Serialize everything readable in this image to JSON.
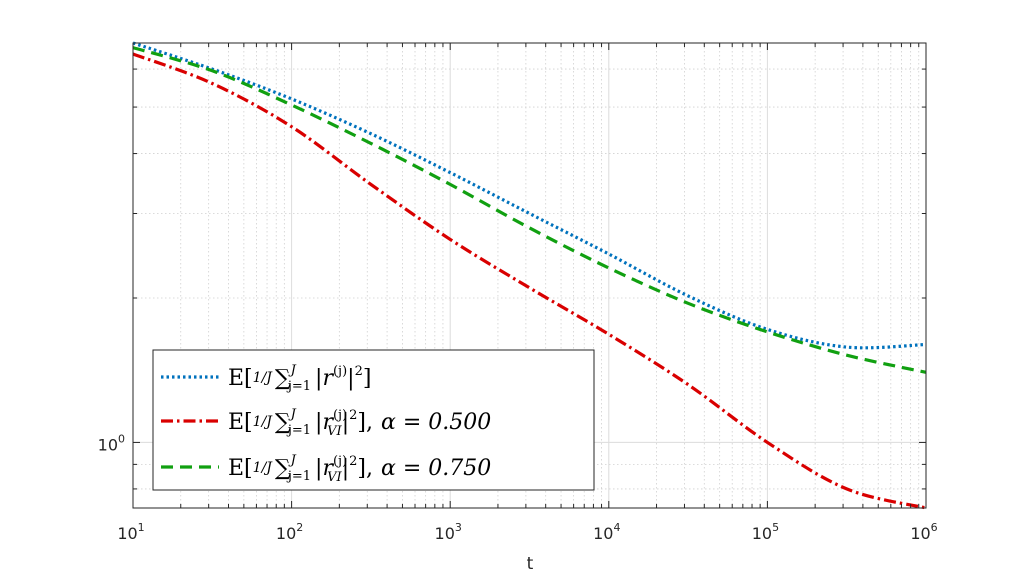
{
  "chart_data": {
    "type": "line",
    "xscale": "log",
    "yscale": "log",
    "xlabel": "t",
    "ylabel": "",
    "title": "",
    "xlim": [
      10,
      1000000
    ],
    "ylim": [
      0.73,
      6.8
    ],
    "grid": true,
    "minor_grid": true,
    "legend_position": "bottom-left",
    "x_ticks": [
      {
        "base": "10",
        "exp": "1"
      },
      {
        "base": "10",
        "exp": "2"
      },
      {
        "base": "10",
        "exp": "3"
      },
      {
        "base": "10",
        "exp": "4"
      },
      {
        "base": "10",
        "exp": "5"
      },
      {
        "base": "10",
        "exp": "6"
      }
    ],
    "y_ticks": [
      {
        "base": "10",
        "exp": "0"
      }
    ],
    "x": [
      10,
      31.6,
      100,
      316,
      1000,
      3162,
      10000,
      31623,
      100000,
      316228,
      1000000
    ],
    "series": [
      {
        "legend": {
          "lhs": "E[",
          "frac": "1/J",
          "sum": "∑",
          "sum_sup": "J",
          "sum_sub": "j=1",
          "body": "|r",
          "sup": "(j)",
          "sub": "",
          "tail": "|",
          "tail_sup": "2",
          "close": "]",
          "param": ""
        },
        "color": "#0072bd",
        "dash": "dotted",
        "values": [
          6.8,
          6.0,
          5.2,
          4.4,
          3.65,
          3.0,
          2.47,
          2.02,
          1.72,
          1.58,
          1.6
        ]
      },
      {
        "legend": {
          "lhs": "E[",
          "frac": "1/J",
          "sum": "∑",
          "sum_sup": "J",
          "sum_sub": "j=1",
          "body": "|r",
          "sup": "(j)",
          "sub": "VI",
          "tail": "|",
          "tail_sup": "2",
          "close": "],",
          "param": "α = 0.500"
        },
        "color": "#d90000",
        "dash": "dashdot",
        "values": [
          6.45,
          5.6,
          4.55,
          3.45,
          2.65,
          2.1,
          1.68,
          1.32,
          1.0,
          0.8,
          0.73
        ]
      },
      {
        "legend": {
          "lhs": "E[",
          "frac": "1/J",
          "sum": "∑",
          "sum_sup": "J",
          "sum_sub": "j=1",
          "body": "|r",
          "sup": "(j)",
          "sub": "VI",
          "tail": "|",
          "tail_sup": "2",
          "close": "],",
          "param": "α = 0.750"
        },
        "color": "#11a011",
        "dash": "dashed",
        "values": [
          6.65,
          5.95,
          5.05,
          4.2,
          3.45,
          2.8,
          2.31,
          1.95,
          1.7,
          1.52,
          1.4
        ]
      }
    ]
  }
}
